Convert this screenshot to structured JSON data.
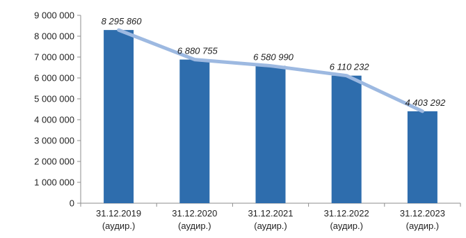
{
  "chart_data": {
    "type": "bar",
    "title": "",
    "xlabel": "",
    "ylabel": "",
    "categories": [
      [
        "31.12.2019",
        "(аудир.)"
      ],
      [
        "31.12.2020",
        "(аудир.)"
      ],
      [
        "31.12.2021",
        "(аудир.)"
      ],
      [
        "31.12.2022",
        "(аудир.)"
      ],
      [
        "31.12.2023",
        "(аудир.)"
      ]
    ],
    "values": [
      8295860,
      6880755,
      6580990,
      6110232,
      4403292
    ],
    "data_labels": [
      "8 295 860",
      "6 880 755",
      "6 580 990",
      "6 110 232",
      "4 403 292"
    ],
    "overlay_line": {
      "type": "line",
      "values": [
        8295860,
        6880755,
        6580990,
        6110232,
        4403292
      ]
    },
    "ylim": [
      0,
      9000000
    ],
    "y_ticks": [
      0,
      1000000,
      2000000,
      3000000,
      4000000,
      5000000,
      6000000,
      7000000,
      8000000,
      9000000
    ],
    "y_tick_labels": [
      "0",
      "1 000 000",
      "2 000 000",
      "3 000 000",
      "4 000 000",
      "5 000 000",
      "6 000 000",
      "7 000 000",
      "8 000 000",
      "9 000 000"
    ],
    "grid": false,
    "legend": "none",
    "colors": {
      "bar": "#2E6DAD",
      "line": "#9DB9E1",
      "axis": "#8C8C8C"
    }
  }
}
